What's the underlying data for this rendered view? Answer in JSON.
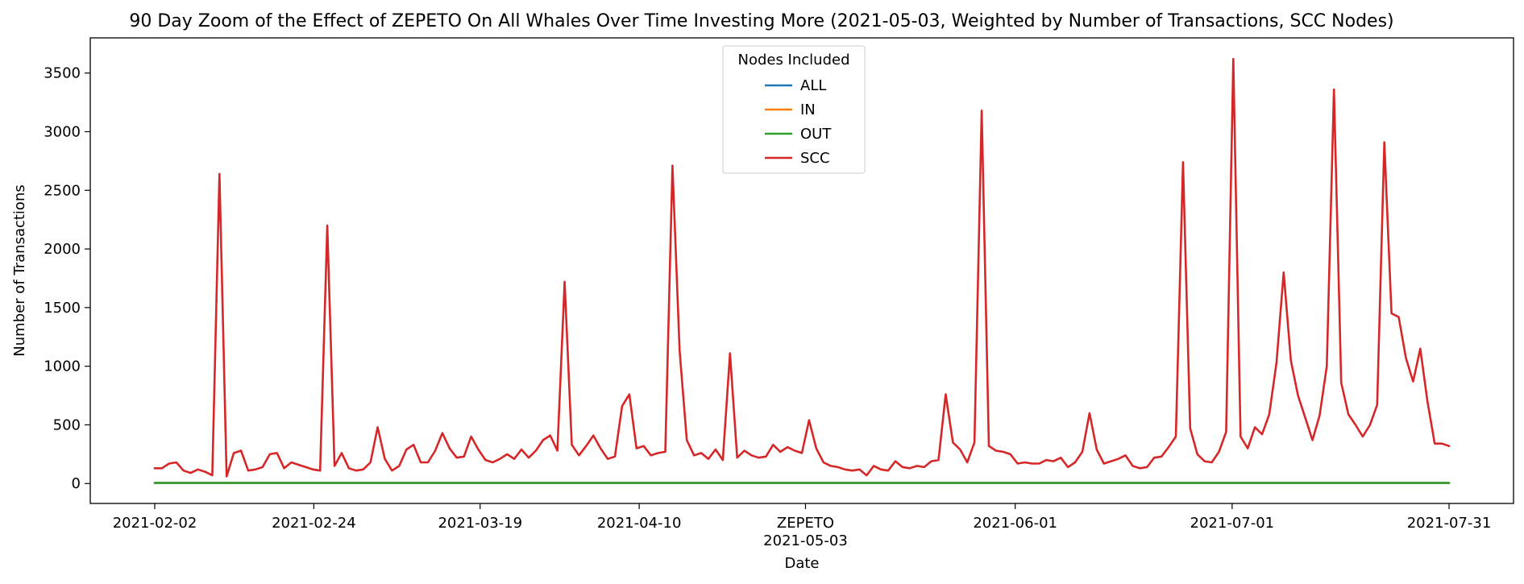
{
  "chart_data": {
    "type": "line",
    "title": "90 Day Zoom of the Effect of ZEPETO On All Whales Over Time Investing More (2021-05-03, Weighted by Number of Transactions, SCC Nodes)",
    "xlabel": "Date",
    "ylabel": "Number of Transactions",
    "xlim": [
      "2021-02-02",
      "2021-07-31"
    ],
    "ylim": [
      -170,
      3800
    ],
    "x_ticks": [
      {
        "date": "2021-02-02",
        "label": "2021-02-02"
      },
      {
        "date": "2021-02-24",
        "label": "2021-02-24"
      },
      {
        "date": "2021-03-19",
        "label": "2021-03-19"
      },
      {
        "date": "2021-04-10",
        "label": "2021-04-10"
      },
      {
        "date": "2021-05-03",
        "label": "ZEPETO",
        "sublabel": "2021-05-03"
      },
      {
        "date": "2021-06-01",
        "label": "2021-06-01"
      },
      {
        "date": "2021-07-01",
        "label": "2021-07-01"
      },
      {
        "date": "2021-07-31",
        "label": "2021-07-31"
      }
    ],
    "y_ticks": [
      0,
      500,
      1000,
      1500,
      2000,
      2500,
      3000,
      3500
    ],
    "grid": false,
    "legend": {
      "title": "Nodes Included",
      "placement": "top-center"
    },
    "series_dates": {
      "start": "2021-02-02",
      "end": "2021-07-31"
    },
    "series": [
      {
        "name": "ALL",
        "color": "#1f77b4",
        "values": [
          5,
          5,
          5,
          5,
          5,
          5,
          5,
          5,
          5,
          5,
          5,
          5,
          5,
          5,
          5,
          5,
          5,
          5,
          5,
          5,
          5,
          5,
          5,
          5,
          5,
          5,
          5,
          5,
          5,
          5,
          5,
          5,
          5,
          5,
          5,
          5,
          5,
          5,
          5,
          5,
          5,
          5,
          5,
          5,
          5,
          5,
          5,
          5,
          5,
          5,
          5,
          5,
          5,
          5,
          5,
          5,
          5,
          5,
          5,
          5,
          5,
          5,
          5,
          5,
          5,
          5,
          5,
          5,
          5,
          5,
          5,
          5,
          5,
          5,
          5,
          5,
          5,
          5,
          5,
          5,
          5,
          5,
          5,
          5,
          5,
          5,
          5,
          5,
          5,
          5,
          5,
          5,
          5,
          5,
          5,
          5,
          5,
          5,
          5,
          5,
          5,
          5,
          5,
          5,
          5,
          5,
          5,
          5,
          5,
          5,
          5,
          5,
          5,
          5,
          5,
          5,
          5,
          5,
          5,
          5,
          5,
          5,
          5,
          5,
          5,
          5,
          5,
          5,
          5,
          5,
          5,
          5,
          5,
          5,
          5,
          5,
          5,
          5,
          5,
          5,
          5,
          5,
          5,
          5,
          5,
          5,
          5,
          5,
          5,
          5,
          5,
          5,
          5,
          5,
          5,
          5,
          5,
          5,
          5,
          5,
          5,
          5,
          5,
          5,
          5,
          5,
          5,
          5,
          5,
          5,
          5,
          5,
          5,
          5,
          5,
          5,
          5,
          5,
          5,
          5
        ]
      },
      {
        "name": "IN",
        "color": "#ff7f0e",
        "values": [
          5,
          5,
          5,
          5,
          5,
          5,
          5,
          5,
          5,
          5,
          5,
          5,
          5,
          5,
          5,
          5,
          5,
          5,
          5,
          5,
          5,
          5,
          5,
          5,
          5,
          5,
          5,
          5,
          5,
          5,
          5,
          5,
          5,
          5,
          5,
          5,
          5,
          5,
          5,
          5,
          5,
          5,
          5,
          5,
          5,
          5,
          5,
          5,
          5,
          5,
          5,
          5,
          5,
          5,
          5,
          5,
          5,
          5,
          5,
          5,
          5,
          5,
          5,
          5,
          5,
          5,
          5,
          5,
          5,
          5,
          5,
          5,
          5,
          5,
          5,
          5,
          5,
          5,
          5,
          5,
          5,
          5,
          5,
          5,
          5,
          5,
          5,
          5,
          5,
          5,
          5,
          5,
          5,
          5,
          5,
          5,
          5,
          5,
          5,
          5,
          5,
          5,
          5,
          5,
          5,
          5,
          5,
          5,
          5,
          5,
          5,
          5,
          5,
          5,
          5,
          5,
          5,
          5,
          5,
          5,
          5,
          5,
          5,
          5,
          5,
          5,
          5,
          5,
          5,
          5,
          5,
          5,
          5,
          5,
          5,
          5,
          5,
          5,
          5,
          5,
          5,
          5,
          5,
          5,
          5,
          5,
          5,
          5,
          5,
          5,
          5,
          5,
          5,
          5,
          5,
          5,
          5,
          5,
          5,
          5,
          5,
          5,
          5,
          5,
          5,
          5,
          5,
          5,
          5,
          5,
          5,
          5,
          5,
          5,
          5,
          5,
          5,
          5,
          5,
          5
        ]
      },
      {
        "name": "OUT",
        "color": "#2ca02c",
        "values": [
          5,
          5,
          5,
          5,
          5,
          5,
          5,
          5,
          5,
          5,
          5,
          5,
          5,
          5,
          5,
          5,
          5,
          5,
          5,
          5,
          5,
          5,
          5,
          5,
          5,
          5,
          5,
          5,
          5,
          5,
          5,
          5,
          5,
          5,
          5,
          5,
          5,
          5,
          5,
          5,
          5,
          5,
          5,
          5,
          5,
          5,
          5,
          5,
          5,
          5,
          5,
          5,
          5,
          5,
          5,
          5,
          5,
          5,
          5,
          5,
          5,
          5,
          5,
          5,
          5,
          5,
          5,
          5,
          5,
          5,
          5,
          5,
          5,
          5,
          5,
          5,
          5,
          5,
          5,
          5,
          5,
          5,
          5,
          5,
          5,
          5,
          5,
          5,
          5,
          5,
          5,
          5,
          5,
          5,
          5,
          5,
          5,
          5,
          5,
          5,
          5,
          5,
          5,
          5,
          5,
          5,
          5,
          5,
          5,
          5,
          5,
          5,
          5,
          5,
          5,
          5,
          5,
          5,
          5,
          5,
          5,
          5,
          5,
          5,
          5,
          5,
          5,
          5,
          5,
          5,
          5,
          5,
          5,
          5,
          5,
          5,
          5,
          5,
          5,
          5,
          5,
          5,
          5,
          5,
          5,
          5,
          5,
          5,
          5,
          5,
          5,
          5,
          5,
          5,
          5,
          5,
          5,
          5,
          5,
          5,
          5,
          5,
          5,
          5,
          5,
          5,
          5,
          5,
          5,
          5,
          5,
          5,
          5,
          5,
          5,
          5,
          5,
          5,
          5,
          5
        ]
      },
      {
        "name": "SCC",
        "color": "#d62728",
        "values": [
          130,
          130,
          170,
          180,
          110,
          90,
          120,
          100,
          70,
          2640,
          60,
          260,
          280,
          110,
          120,
          140,
          250,
          260,
          130,
          180,
          160,
          140,
          120,
          110,
          2200,
          150,
          260,
          130,
          110,
          120,
          180,
          480,
          210,
          110,
          150,
          290,
          330,
          180,
          180,
          280,
          430,
          300,
          220,
          230,
          400,
          290,
          200,
          180,
          210,
          250,
          210,
          290,
          220,
          280,
          370,
          410,
          280,
          1720,
          330,
          240,
          320,
          410,
          300,
          210,
          230,
          660,
          760,
          300,
          320,
          240,
          260,
          270,
          2710,
          1130,
          370,
          240,
          260,
          210,
          290,
          200,
          1110,
          220,
          280,
          240,
          220,
          230,
          330,
          270,
          310,
          280,
          260,
          540,
          300,
          180,
          150,
          140,
          120,
          110,
          120,
          70,
          150,
          120,
          110,
          190,
          140,
          130,
          150,
          140,
          190,
          200,
          760,
          350,
          290,
          180,
          350,
          3180,
          320,
          280,
          270,
          250,
          170,
          180,
          170,
          170,
          200,
          190,
          220,
          140,
          180,
          270,
          600,
          290,
          170,
          190,
          210,
          240,
          150,
          130,
          140,
          220,
          230,
          310,
          400,
          2740,
          470,
          250,
          190,
          180,
          270,
          440,
          3620,
          400,
          300,
          480,
          420,
          590,
          1030,
          1800,
          1050,
          750,
          560,
          370,
          580,
          1000,
          3360,
          860,
          590,
          500,
          400,
          500,
          670,
          2910,
          1450,
          1420,
          1070,
          870,
          1150,
          700,
          340,
          340,
          320
        ]
      }
    ]
  }
}
